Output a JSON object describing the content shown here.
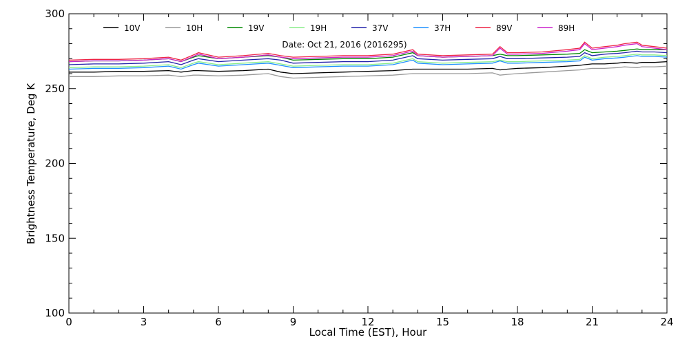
{
  "chart_data": {
    "type": "line",
    "title": "",
    "annotation": "Date: Oct 21, 2016 (2016295)",
    "xlabel": "Local Time (EST), Hour",
    "ylabel": "Brightness Temperature, Deg K",
    "xlim": [
      0,
      24
    ],
    "ylim": [
      100,
      300
    ],
    "xticks": [
      0,
      3,
      6,
      9,
      12,
      15,
      18,
      21,
      24
    ],
    "yticks": [
      100,
      150,
      200,
      250,
      300
    ],
    "grid": false,
    "legend_position": "top",
    "x": [
      0,
      1,
      2,
      3,
      4,
      4.5,
      5,
      5.2,
      6,
      7,
      8,
      8.5,
      9,
      10,
      11,
      12,
      13,
      13.8,
      14,
      15,
      16,
      17,
      17.3,
      17.6,
      18,
      19,
      20,
      20.5,
      20.7,
      21,
      21.5,
      22,
      22.3,
      22.8,
      23,
      23.5,
      24
    ],
    "series": [
      {
        "name": "10V",
        "color": "#000000",
        "values": [
          261,
          261,
          261.5,
          261.5,
          262,
          261,
          262,
          262,
          261.5,
          262,
          263,
          261,
          260,
          260.5,
          261,
          261.5,
          262,
          263,
          263,
          263,
          263,
          263.5,
          262.5,
          263,
          263.5,
          264,
          265,
          265.5,
          266,
          266.5,
          266.5,
          267,
          267.5,
          267,
          267.5,
          267.5,
          268
        ]
      },
      {
        "name": "10H",
        "color": "#999999",
        "values": [
          258,
          258,
          258.5,
          258.5,
          259,
          258,
          259,
          259,
          258.5,
          259,
          260,
          258,
          257,
          257.5,
          258,
          258.5,
          259,
          260,
          260,
          260,
          260,
          260.5,
          259,
          259.5,
          260,
          261,
          262,
          262.5,
          263,
          263.5,
          263.5,
          264,
          264.5,
          264,
          264.5,
          264.5,
          265
        ]
      },
      {
        "name": "19V",
        "color": "#008800",
        "values": [
          268,
          268.5,
          268.5,
          269,
          270,
          268,
          271,
          272,
          270,
          271,
          272,
          271,
          269,
          269.5,
          270,
          270,
          271,
          274,
          272,
          271,
          271.5,
          272,
          273,
          272,
          272,
          272.5,
          273,
          273.5,
          276,
          274,
          274.5,
          275,
          275.5,
          276.5,
          276,
          276,
          276
        ]
      },
      {
        "name": "19H",
        "color": "#88EE88",
        "values": [
          264,
          264.5,
          264.5,
          265,
          266,
          264,
          267,
          268,
          266,
          267,
          268,
          266.5,
          265,
          265.5,
          266,
          266,
          267,
          270,
          268,
          267,
          267.5,
          268,
          269,
          268,
          268,
          268.5,
          269,
          269.5,
          272,
          270,
          271,
          271.5,
          272,
          273,
          272.5,
          272.5,
          272
        ]
      },
      {
        "name": "37V",
        "color": "#2222AA",
        "values": [
          266,
          266.5,
          266.5,
          267,
          268,
          266,
          269,
          270,
          268,
          269,
          270,
          269,
          267,
          267.5,
          268,
          268,
          269,
          272,
          270,
          269,
          269.5,
          270,
          271.5,
          270,
          270,
          270.5,
          271,
          271.5,
          274,
          272,
          273,
          273.5,
          274,
          275,
          274.5,
          274.5,
          274
        ]
      },
      {
        "name": "37H",
        "color": "#1E90FF",
        "values": [
          263,
          263.5,
          263.5,
          264,
          265,
          263,
          266,
          267,
          265,
          266,
          267,
          265.5,
          264,
          264.5,
          265,
          265,
          266,
          269,
          267,
          266,
          266.5,
          267,
          268.5,
          267,
          267,
          267.5,
          268,
          268.5,
          271,
          269,
          270,
          270.5,
          271,
          272,
          271.5,
          271.5,
          271
        ]
      },
      {
        "name": "89V",
        "color": "#EE2244",
        "values": [
          269,
          269.5,
          269.5,
          270,
          271,
          269,
          272.5,
          274,
          271,
          272,
          273.5,
          272,
          271,
          271.5,
          272,
          272,
          273,
          276,
          273,
          272,
          272.5,
          273,
          278,
          274,
          274,
          274.5,
          276,
          277,
          281,
          277,
          278,
          279,
          280,
          281,
          279,
          278,
          277
        ]
      },
      {
        "name": "89H",
        "color": "#CC22CC",
        "values": [
          268,
          268.5,
          268.5,
          269,
          270,
          268,
          271.5,
          273,
          270,
          271,
          272.5,
          271,
          270,
          270.5,
          271,
          271,
          272,
          275,
          272,
          271,
          271.5,
          272,
          277,
          273,
          273,
          273.5,
          275,
          276,
          280,
          276,
          277,
          278,
          279,
          280,
          278,
          277,
          276
        ]
      }
    ]
  }
}
